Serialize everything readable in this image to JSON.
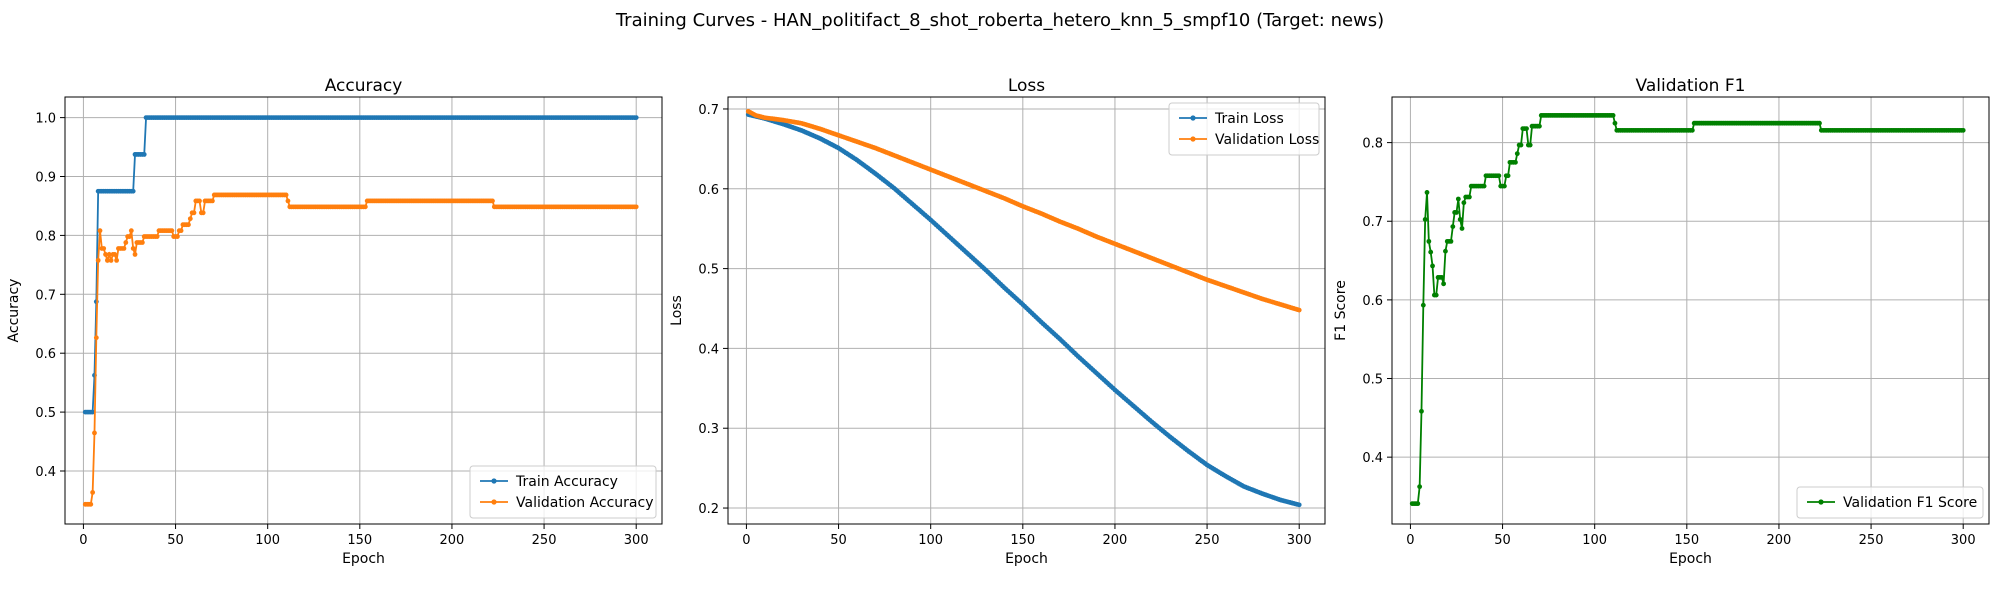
{
  "figure": {
    "title": "Training Curves - HAN_politifact_8_shot_roberta_hetero_knn_5_smpf10 (Target: news)"
  },
  "colors": {
    "train": "#1f77b4",
    "validation": "#ff7f0e",
    "f1": "#008000"
  },
  "chart_data": [
    {
      "type": "line",
      "title": "Accuracy",
      "xlabel": "Epoch",
      "ylabel": "Accuracy",
      "xlim": [
        -10,
        314
      ],
      "ylim": [
        0.31,
        1.035
      ],
      "xticks": [
        0,
        50,
        100,
        150,
        200,
        250,
        300
      ],
      "yticks": [
        0.4,
        0.5,
        0.6,
        0.7,
        0.8,
        0.9,
        1.0
      ],
      "ytick_labels": [
        "0.4",
        "0.5",
        "0.6",
        "0.7",
        "0.8",
        "0.9",
        "1.0"
      ],
      "grid": true,
      "legend": "lower right",
      "series": [
        {
          "name": "Train Accuracy",
          "color": "#1f77b4",
          "points": [
            [
              1,
              0.5
            ],
            [
              5,
              0.5
            ],
            [
              6,
              0.5625
            ],
            [
              7,
              0.6875
            ],
            [
              8,
              0.875
            ],
            [
              27,
              0.875
            ],
            [
              28,
              0.9375
            ],
            [
              33,
              0.9375
            ],
            [
              34,
              1.0
            ],
            [
              300,
              1.0
            ]
          ]
        },
        {
          "name": "Validation Accuracy",
          "color": "#ff7f0e",
          "points": [
            [
              1,
              0.3434
            ],
            [
              4,
              0.3434
            ],
            [
              5,
              0.3636
            ],
            [
              6,
              0.4646
            ],
            [
              7,
              0.6263
            ],
            [
              8,
              0.7576
            ],
            [
              9,
              0.8081
            ],
            [
              10,
              0.7778
            ],
            [
              11,
              0.7778
            ],
            [
              12,
              0.7677
            ],
            [
              13,
              0.7576
            ],
            [
              14,
              0.7677
            ],
            [
              15,
              0.7576
            ],
            [
              16,
              0.7677
            ],
            [
              17,
              0.7677
            ],
            [
              18,
              0.7576
            ],
            [
              19,
              0.7778
            ],
            [
              22,
              0.7778
            ],
            [
              23,
              0.7879
            ],
            [
              24,
              0.798
            ],
            [
              25,
              0.798
            ],
            [
              26,
              0.8081
            ],
            [
              27,
              0.7778
            ],
            [
              28,
              0.7677
            ],
            [
              29,
              0.7879
            ],
            [
              32,
              0.7879
            ],
            [
              33,
              0.798
            ],
            [
              40,
              0.798
            ],
            [
              41,
              0.8081
            ],
            [
              48,
              0.8081
            ],
            [
              49,
              0.798
            ],
            [
              51,
              0.798
            ],
            [
              52,
              0.8081
            ],
            [
              54,
              0.8182
            ],
            [
              57,
              0.8182
            ],
            [
              58,
              0.8283
            ],
            [
              59,
              0.8384
            ],
            [
              60,
              0.8384
            ],
            [
              61,
              0.8586
            ],
            [
              63,
              0.8586
            ],
            [
              64,
              0.8384
            ],
            [
              65,
              0.8384
            ],
            [
              66,
              0.8586
            ],
            [
              70,
              0.8586
            ],
            [
              71,
              0.8687
            ],
            [
              110,
              0.8687
            ],
            [
              111,
              0.8586
            ],
            [
              112,
              0.8485
            ],
            [
              153,
              0.8485
            ],
            [
              154,
              0.8586
            ],
            [
              222,
              0.8586
            ],
            [
              223,
              0.8485
            ],
            [
              300,
              0.8485
            ]
          ]
        }
      ]
    },
    {
      "type": "line",
      "title": "Loss",
      "xlabel": "Epoch",
      "ylabel": "Loss",
      "xlim": [
        -10,
        314
      ],
      "ylim": [
        0.18,
        0.715
      ],
      "xticks": [
        0,
        50,
        100,
        150,
        200,
        250,
        300
      ],
      "yticks": [
        0.2,
        0.3,
        0.4,
        0.5,
        0.6,
        0.7
      ],
      "ytick_labels": [
        "0.2",
        "0.3",
        "0.4",
        "0.5",
        "0.6",
        "0.7"
      ],
      "grid": true,
      "legend": "upper right",
      "series": [
        {
          "name": "Train Loss",
          "color": "#1f77b4",
          "points": [
            [
              1,
              0.693
            ],
            [
              10,
              0.688
            ],
            [
              20,
              0.681
            ],
            [
              30,
              0.673
            ],
            [
              40,
              0.663
            ],
            [
              50,
              0.651
            ],
            [
              60,
              0.636
            ],
            [
              70,
              0.619
            ],
            [
              80,
              0.601
            ],
            [
              90,
              0.581
            ],
            [
              100,
              0.561
            ],
            [
              110,
              0.54
            ],
            [
              120,
              0.519
            ],
            [
              130,
              0.498
            ],
            [
              140,
              0.476
            ],
            [
              150,
              0.455
            ],
            [
              160,
              0.433
            ],
            [
              170,
              0.412
            ],
            [
              180,
              0.39
            ],
            [
              190,
              0.369
            ],
            [
              200,
              0.348
            ],
            [
              210,
              0.328
            ],
            [
              220,
              0.308
            ],
            [
              230,
              0.289
            ],
            [
              240,
              0.271
            ],
            [
              250,
              0.254
            ],
            [
              260,
              0.24
            ],
            [
              270,
              0.227
            ],
            [
              280,
              0.218
            ],
            [
              290,
              0.21
            ],
            [
              300,
              0.204
            ]
          ]
        },
        {
          "name": "Validation Loss",
          "color": "#ff7f0e",
          "points": [
            [
              1,
              0.697
            ],
            [
              5,
              0.692
            ],
            [
              10,
              0.689
            ],
            [
              20,
              0.686
            ],
            [
              30,
              0.682
            ],
            [
              40,
              0.675
            ],
            [
              50,
              0.667
            ],
            [
              60,
              0.659
            ],
            [
              70,
              0.651
            ],
            [
              80,
              0.642
            ],
            [
              90,
              0.633
            ],
            [
              100,
              0.624
            ],
            [
              110,
              0.615
            ],
            [
              120,
              0.606
            ],
            [
              130,
              0.597
            ],
            [
              140,
              0.588
            ],
            [
              150,
              0.578
            ],
            [
              160,
              0.569
            ],
            [
              170,
              0.559
            ],
            [
              180,
              0.55
            ],
            [
              190,
              0.54
            ],
            [
              200,
              0.531
            ],
            [
              210,
              0.522
            ],
            [
              220,
              0.513
            ],
            [
              230,
              0.504
            ],
            [
              240,
              0.495
            ],
            [
              250,
              0.486
            ],
            [
              260,
              0.478
            ],
            [
              270,
              0.47
            ],
            [
              280,
              0.462
            ],
            [
              290,
              0.455
            ],
            [
              300,
              0.448
            ]
          ]
        }
      ]
    },
    {
      "type": "line",
      "title": "Validation F1",
      "xlabel": "Epoch",
      "ylabel": "F1 Score",
      "xlim": [
        -10,
        314
      ],
      "ylim": [
        0.315,
        0.858
      ],
      "xticks": [
        0,
        50,
        100,
        150,
        200,
        250,
        300
      ],
      "yticks": [
        0.4,
        0.5,
        0.6,
        0.7,
        0.8
      ],
      "ytick_labels": [
        "0.4",
        "0.5",
        "0.6",
        "0.7",
        "0.8"
      ],
      "grid": true,
      "legend": "lower right",
      "series": [
        {
          "name": "Validation F1 Score",
          "color": "#008000",
          "points": [
            [
              1,
              0.3409
            ],
            [
              4,
              0.3409
            ],
            [
              5,
              0.3625
            ],
            [
              6,
              0.4583
            ],
            [
              7,
              0.5933
            ],
            [
              8,
              0.7023
            ],
            [
              9,
              0.7367
            ],
            [
              10,
              0.6744
            ],
            [
              11,
              0.6608
            ],
            [
              12,
              0.6432
            ],
            [
              13,
              0.6061
            ],
            [
              14,
              0.6061
            ],
            [
              15,
              0.6286
            ],
            [
              17,
              0.6286
            ],
            [
              18,
              0.6204
            ],
            [
              19,
              0.6619
            ],
            [
              20,
              0.6744
            ],
            [
              22,
              0.6744
            ],
            [
              23,
              0.6932
            ],
            [
              24,
              0.7112
            ],
            [
              25,
              0.7112
            ],
            [
              26,
              0.7283
            ],
            [
              27,
              0.7023
            ],
            [
              28,
              0.6908
            ],
            [
              29,
              0.7236
            ],
            [
              30,
              0.7308
            ],
            [
              32,
              0.7308
            ],
            [
              33,
              0.7447
            ],
            [
              40,
              0.7447
            ],
            [
              41,
              0.7579
            ],
            [
              48,
              0.7579
            ],
            [
              49,
              0.7447
            ],
            [
              51,
              0.7447
            ],
            [
              52,
              0.7579
            ],
            [
              54,
              0.7749
            ],
            [
              57,
              0.7749
            ],
            [
              58,
              0.786
            ],
            [
              59,
              0.7969
            ],
            [
              60,
              0.7969
            ],
            [
              61,
              0.8178
            ],
            [
              63,
              0.8178
            ],
            [
              64,
              0.7969
            ],
            [
              65,
              0.7969
            ],
            [
              66,
              0.8209
            ],
            [
              70,
              0.8209
            ],
            [
              71,
              0.8346
            ],
            [
              110,
              0.8346
            ],
            [
              111,
              0.8247
            ],
            [
              112,
              0.8156
            ],
            [
              153,
              0.8156
            ],
            [
              154,
              0.8247
            ],
            [
              222,
              0.8247
            ],
            [
              223,
              0.8156
            ],
            [
              300,
              0.8156
            ]
          ]
        }
      ]
    }
  ]
}
